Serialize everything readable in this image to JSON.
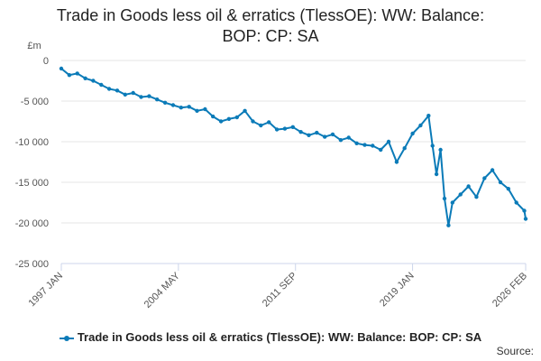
{
  "title_lines": [
    "Trade in Goods less oil & erratics (TlessOE): WW: Balance:",
    "BOP: CP: SA"
  ],
  "colors": {
    "series": "#0b7bb8",
    "grid": "#e6e6e6",
    "axis": "#ccd6eb"
  },
  "source_label": "Source:",
  "chart_data": {
    "type": "line",
    "title": "Trade in Goods less oil & erratics (TlessOE): WW: Balance: BOP: CP: SA",
    "ylabel": "£m",
    "ylim": [
      -25000,
      0
    ],
    "yticks": [
      0,
      -5000,
      -10000,
      -15000,
      -20000,
      -25000
    ],
    "ytick_labels": [
      "0",
      "-5 000",
      "-10 000",
      "-15 000",
      "-20 000",
      "-25 000"
    ],
    "xlim": [
      1997.0,
      2026.083
    ],
    "xticks": [
      1997.0,
      2004.333,
      2011.667,
      2019.0,
      2026.083
    ],
    "xtick_labels": [
      "1997 JAN",
      "2004 MAY",
      "2011 SEP",
      "2019 JAN",
      "2026 FEB"
    ],
    "legend": "Trade in Goods less oil & erratics (TlessOE): WW: Balance: BOP: CP: SA",
    "series": [
      {
        "name": "Trade in Goods less oil & erratics (TlessOE): WW: Balance: BOP: CP: SA",
        "x": [
          1997.0,
          1997.5,
          1998.0,
          1998.5,
          1999.0,
          1999.5,
          2000.0,
          2000.5,
          2001.0,
          2001.5,
          2002.0,
          2002.5,
          2003.0,
          2003.5,
          2004.0,
          2004.5,
          2005.0,
          2005.5,
          2006.0,
          2006.5,
          2007.0,
          2007.5,
          2008.0,
          2008.5,
          2009.0,
          2009.5,
          2010.0,
          2010.5,
          2011.0,
          2011.5,
          2012.0,
          2012.5,
          2013.0,
          2013.5,
          2014.0,
          2014.5,
          2015.0,
          2015.5,
          2016.0,
          2016.5,
          2017.0,
          2017.5,
          2018.0,
          2018.5,
          2019.0,
          2019.5,
          2020.0,
          2020.25,
          2020.5,
          2020.75,
          2021.0,
          2021.25,
          2021.5,
          2022.0,
          2022.5,
          2023.0,
          2023.5,
          2024.0,
          2024.5,
          2025.0,
          2025.5,
          2026.0,
          2026.083
        ],
        "values": [
          -1000,
          -1800,
          -1600,
          -2200,
          -2500,
          -3000,
          -3500,
          -3700,
          -4200,
          -4000,
          -4500,
          -4400,
          -4800,
          -5200,
          -5500,
          -5800,
          -5700,
          -6200,
          -6000,
          -6900,
          -7500,
          -7200,
          -7000,
          -6200,
          -7500,
          -8000,
          -7600,
          -8500,
          -8400,
          -8200,
          -8800,
          -9200,
          -8900,
          -9400,
          -9100,
          -9800,
          -9500,
          -10200,
          -10400,
          -10500,
          -11000,
          -10000,
          -12500,
          -10800,
          -9000,
          -8000,
          -6800,
          -10500,
          -14000,
          -11000,
          -17000,
          -20300,
          -17500,
          -16500,
          -15500,
          -16800,
          -14500,
          -13500,
          -15000,
          -15800,
          -17500,
          -18500,
          -19500
        ]
      }
    ]
  }
}
